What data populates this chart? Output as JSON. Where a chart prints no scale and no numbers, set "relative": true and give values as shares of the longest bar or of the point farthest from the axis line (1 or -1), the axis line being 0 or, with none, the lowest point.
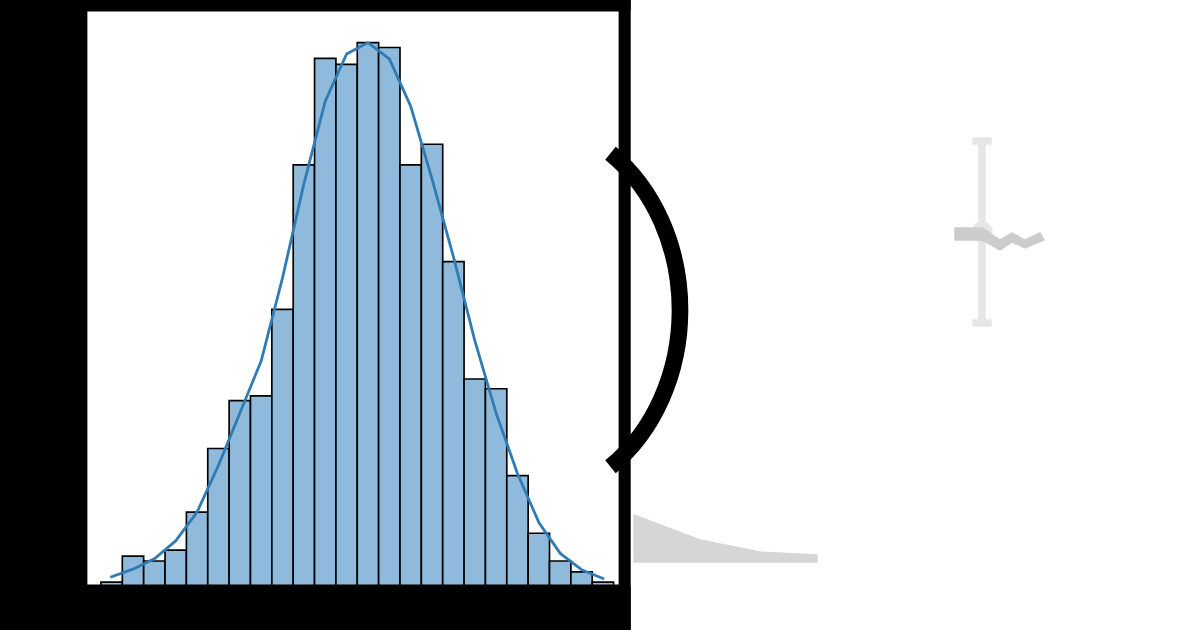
{
  "chart_data": [
    {
      "type": "bar",
      "relative": true,
      "categories": [
        null,
        null,
        null,
        null,
        null,
        null,
        null,
        null,
        null,
        null,
        null,
        null,
        null,
        null,
        null,
        null,
        null,
        null,
        null,
        null,
        null,
        null,
        null,
        null
      ],
      "series": [
        {
          "color": "#8fbadb",
          "values": [
            0.007,
            0.055,
            0.046,
            0.066,
            0.136,
            0.253,
            0.341,
            0.35,
            0.509,
            0.775,
            0.971,
            0.96,
            1,
            0.991,
            0.775,
            0.813,
            0.597,
            0.381,
            0.363,
            0.203,
            0.097,
            0.046,
            0.026,
            0.007
          ]
        }
      ]
    },
    {
      "type": "line",
      "relative": true,
      "categories": [
        null,
        null,
        null,
        null,
        null,
        null,
        null,
        null,
        null,
        null,
        null,
        null,
        null,
        null,
        null,
        null,
        null,
        null,
        null,
        null,
        null,
        null,
        null,
        null
      ],
      "series": [
        {
          "color": "#2f7bb4",
          "values": [
            0.017,
            0.031,
            0.05,
            0.083,
            0.136,
            0.222,
            0.318,
            0.414,
            0.567,
            0.74,
            0.892,
            0.979,
            1,
            0.97,
            0.883,
            0.749,
            0.606,
            0.452,
            0.318,
            0.207,
            0.117,
            0.06,
            0.03,
            0.014
          ]
        }
      ]
    }
  ]
}
